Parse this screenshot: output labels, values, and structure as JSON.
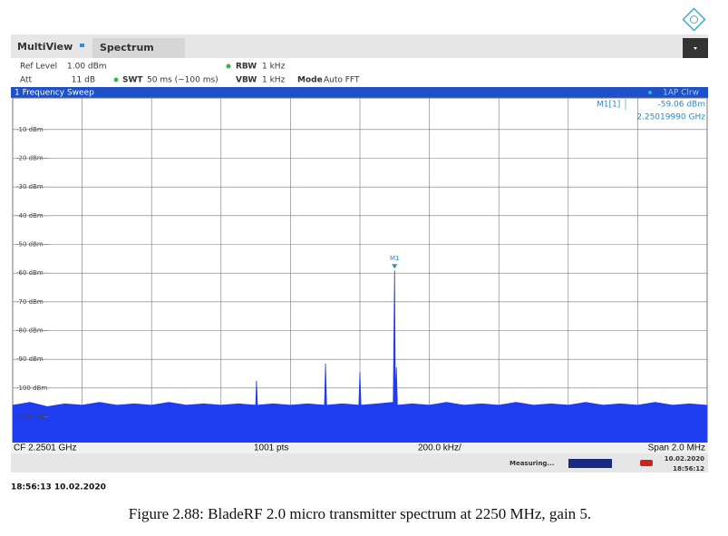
{
  "header": {
    "app": "MultiView",
    "tab": "Spectrum",
    "ref_level_label": "Ref Level",
    "ref_level": "1.00 dBm",
    "att_label": "Att",
    "att": "11 dB",
    "swt_label": "SWT",
    "swt": "50 ms (~100 ms)",
    "rbw_label": "RBW",
    "rbw": "1 kHz",
    "vbw_label": "VBW",
    "vbw": "1 kHz",
    "mode_label": "Mode",
    "mode": "Auto FFT"
  },
  "chart_data": {
    "type": "area",
    "title": "1 Frequency Sweep",
    "trace_label": "1AP Clrw",
    "color": "#1f3cf0",
    "xlim": [
      2.2491,
      2.2511
    ],
    "ylim": [
      -119,
      1
    ],
    "yticks": [
      {
        "value": -10,
        "label": "-10 dBm"
      },
      {
        "value": -20,
        "label": "-20 dBm"
      },
      {
        "value": -30,
        "label": "-30 dBm"
      },
      {
        "value": -40,
        "label": "-40 dBm"
      },
      {
        "value": -50,
        "label": "-50 dBm"
      },
      {
        "value": -60,
        "label": "-60 dBm"
      },
      {
        "value": -70,
        "label": "-70 dBm"
      },
      {
        "value": -80,
        "label": "-80 dBm"
      },
      {
        "value": -90,
        "label": "-90 dBm"
      },
      {
        "value": -100,
        "label": "-100 dBm"
      },
      {
        "value": -110,
        "label": "-110 dBm"
      }
    ],
    "grid": true,
    "x": [
      2.2491,
      2.24915,
      2.2492,
      2.24925,
      2.2493,
      2.24935,
      2.2494,
      2.24945,
      2.2495,
      2.24955,
      2.2496,
      2.24965,
      2.2497,
      2.24975,
      2.2498,
      2.249802,
      2.249805,
      2.24985,
      2.2499,
      2.24995,
      2.249998,
      2.250001,
      2.250004,
      2.25005,
      2.250097,
      2.2501,
      2.250103,
      2.25015,
      2.250196,
      2.2501999,
      2.250202,
      2.250205,
      2.250208,
      2.25025,
      2.2503,
      2.25035,
      2.2504,
      2.25045,
      2.2505,
      2.25055,
      2.2506,
      2.25065,
      2.2507,
      2.25075,
      2.2508,
      2.25085,
      2.2509,
      2.25095,
      2.251,
      2.25105,
      2.2511
    ],
    "values": [
      -106,
      -105,
      -106.5,
      -105.5,
      -106,
      -105,
      -106,
      -105.5,
      -106,
      -105,
      -106,
      -105.5,
      -106,
      -105.5,
      -106,
      -97.5,
      -106,
      -105.5,
      -106,
      -105.5,
      -106,
      -91.5,
      -106,
      -105.5,
      -106,
      -94.4,
      -106,
      -105.5,
      -105,
      -59.06,
      -104,
      -92.8,
      -106,
      -105.5,
      -106,
      -105,
      -106,
      -105.5,
      -106,
      -105,
      -106,
      -105.5,
      -106,
      -105,
      -106,
      -105.5,
      -106,
      -105,
      -106,
      -105.5,
      -106
    ],
    "marker": {
      "name": "M1",
      "label": "M1[1]",
      "x": 2.2501999,
      "x_label": "2.25019990 GHz",
      "value": -59.06,
      "value_label": "-59.06 dBm"
    },
    "footer": {
      "center": "CF 2.2501 GHz",
      "points": "1001 pts",
      "per_div": "200.0 kHz/",
      "span": "Span 2.0 MHz"
    }
  },
  "status": {
    "state": "Measuring...",
    "date": "10.02.2020",
    "time": "18:56:12"
  },
  "timestamp": "18:56:13 10.02.2020",
  "caption": "Figure 2.88: BladeRF 2.0 micro transmitter spectrum at 2250 MHz, gain 5."
}
